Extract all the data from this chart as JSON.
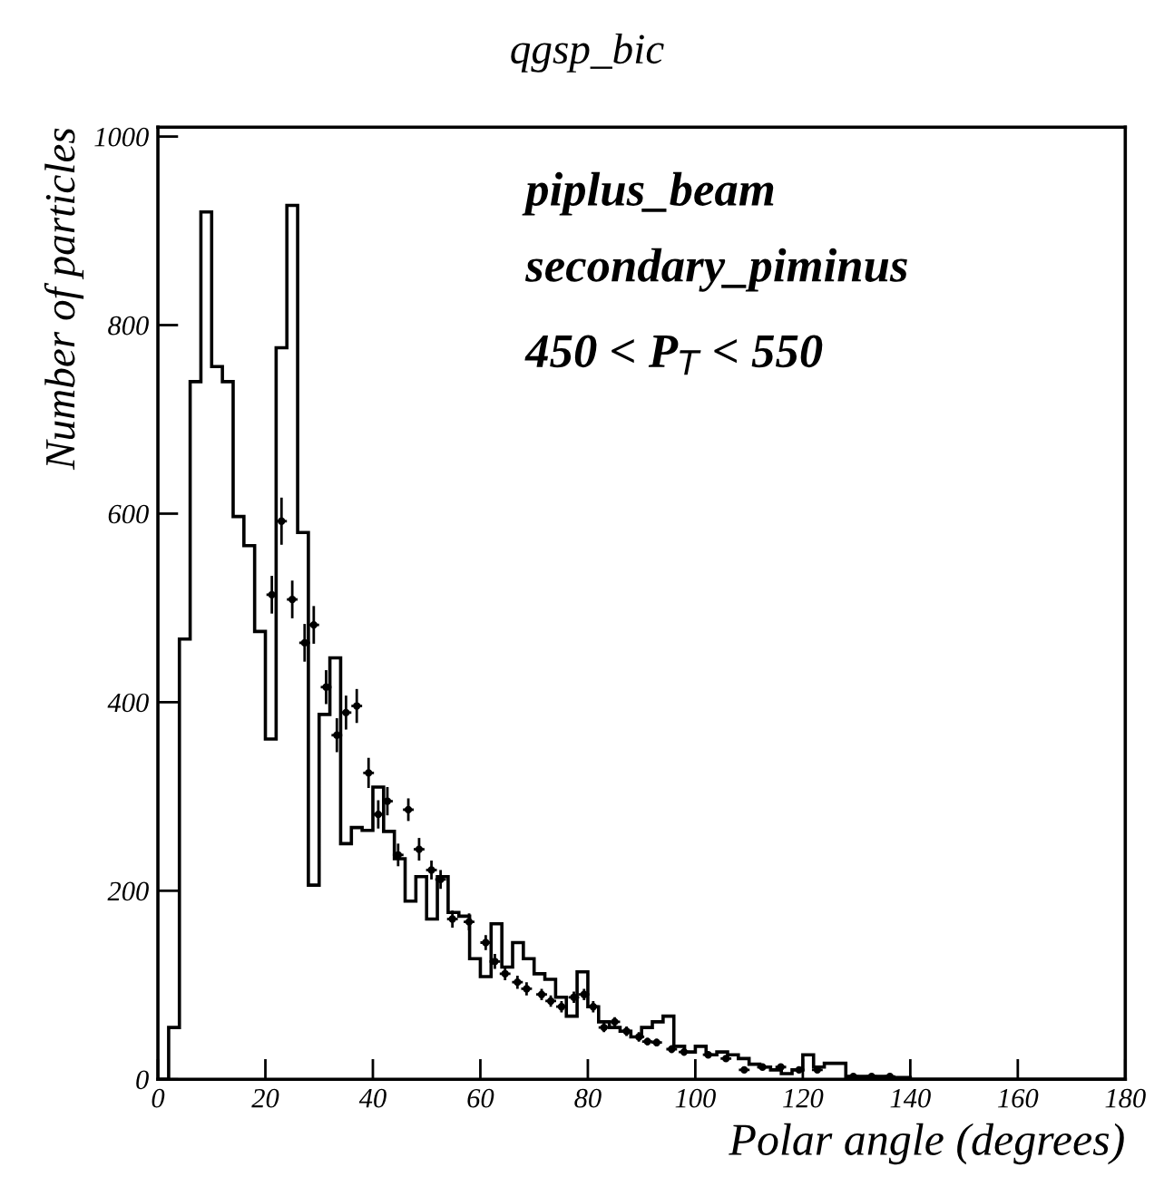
{
  "chart_data": {
    "type": "histogram",
    "title": "qgsp_bic",
    "xlabel": "Polar angle (degrees)",
    "ylabel": "Number of particles",
    "annotations": [
      "piplus_beam",
      "secondary_piminus",
      "450 < P$_{T}$ < 550"
    ],
    "xlim": [
      0,
      180
    ],
    "xticks": [
      0,
      20,
      40,
      60,
      80,
      100,
      120,
      140,
      160,
      180
    ],
    "ylim": [
      0,
      1010
    ],
    "yticks": [
      0,
      200,
      400,
      600,
      800,
      1000
    ],
    "grid": false,
    "legend": false,
    "series": [
      {
        "color": "#000000",
        "bins": [
          0,
          2,
          4,
          6,
          8,
          10,
          12,
          14,
          16,
          18,
          20,
          22,
          24,
          26,
          28,
          30,
          32,
          34,
          36,
          38,
          40,
          42,
          44,
          46,
          48,
          50,
          52,
          54,
          56,
          58,
          60,
          62,
          64,
          66,
          68,
          70,
          72,
          74,
          76,
          78,
          80,
          82,
          84,
          86,
          88,
          90,
          92,
          94,
          96,
          98,
          100,
          102,
          104,
          106,
          108,
          110,
          112,
          114,
          116,
          118,
          120,
          122,
          124,
          126,
          128,
          130,
          132,
          134,
          136,
          138,
          140,
          142,
          144,
          146,
          148,
          150,
          152,
          154,
          156,
          158,
          160,
          162,
          164,
          166,
          168,
          170,
          172,
          174,
          176,
          178,
          180
        ],
        "values": [
          0,
          55,
          467,
          740,
          920,
          756,
          740,
          597,
          566,
          475,
          361,
          776,
          927,
          580,
          206,
          387,
          447,
          250,
          267,
          264,
          310,
          263,
          234,
          189,
          215,
          170,
          215,
          177,
          173,
          128,
          109,
          165,
          119,
          145,
          128,
          112,
          106,
          87,
          67,
          114,
          77,
          61,
          55,
          51,
          45,
          55,
          61,
          67,
          35,
          29,
          35,
          26,
          29,
          26,
          22,
          16,
          13,
          10,
          6,
          10,
          26,
          13,
          17,
          17,
          3,
          3,
          3,
          3,
          2,
          2,
          0,
          0,
          0,
          0,
          0,
          0,
          0,
          0,
          0,
          0,
          0,
          0,
          0,
          0,
          0,
          0,
          0,
          0,
          0,
          0
        ]
      },
      {
        "type": "scatter",
        "color": "#000000",
        "marker": "circle",
        "x": [
          21.2,
          23,
          25,
          27.3,
          29,
          31.3,
          33.3,
          35,
          37,
          39.2,
          41,
          42.7,
          44.7,
          46.6,
          48.6,
          50.9,
          52.6,
          54.8,
          57.9,
          61,
          62.7,
          64.6,
          66.9,
          68.6,
          71.4,
          73.1,
          75.1,
          77.4,
          79.3,
          81,
          83,
          85,
          87.2,
          89.5,
          91.1,
          92.8,
          95.6,
          97.9,
          102.4,
          105.7,
          109.1,
          112.5,
          115.9,
          119.3,
          122.7,
          129.4,
          132.8,
          136.2
        ],
        "values": [
          514,
          592,
          509,
          463,
          482,
          416,
          365,
          389,
          396,
          325,
          281,
          295,
          238,
          286,
          244,
          222,
          212,
          170,
          167,
          145,
          125,
          112,
          103,
          96,
          90,
          83,
          77,
          87,
          90,
          77,
          55,
          61,
          51,
          45,
          40,
          39,
          32,
          29,
          26,
          22,
          10,
          13,
          13,
          10,
          10,
          3,
          3,
          3
        ],
        "errors": [
          20,
          25,
          20,
          20,
          20,
          18,
          18,
          18,
          18,
          16,
          15,
          15,
          12,
          12,
          12,
          10,
          10,
          9,
          9,
          8,
          8,
          7,
          7,
          7,
          6,
          6,
          6,
          6,
          6,
          6,
          5,
          5,
          5,
          5,
          4,
          4,
          4,
          4,
          3,
          3,
          2,
          2,
          2,
          2,
          2,
          1,
          1,
          1
        ],
        "xerrors": [
          1,
          1,
          1,
          1,
          1,
          1,
          1,
          1,
          1,
          1,
          1,
          1,
          1,
          1,
          1,
          1,
          1,
          1,
          1,
          1,
          1,
          1,
          1,
          1,
          1,
          1,
          1,
          1,
          1,
          1,
          1,
          1,
          1,
          1,
          1,
          1,
          1,
          1,
          1,
          1,
          1,
          1,
          1,
          1,
          1,
          1,
          1,
          1
        ]
      }
    ]
  }
}
